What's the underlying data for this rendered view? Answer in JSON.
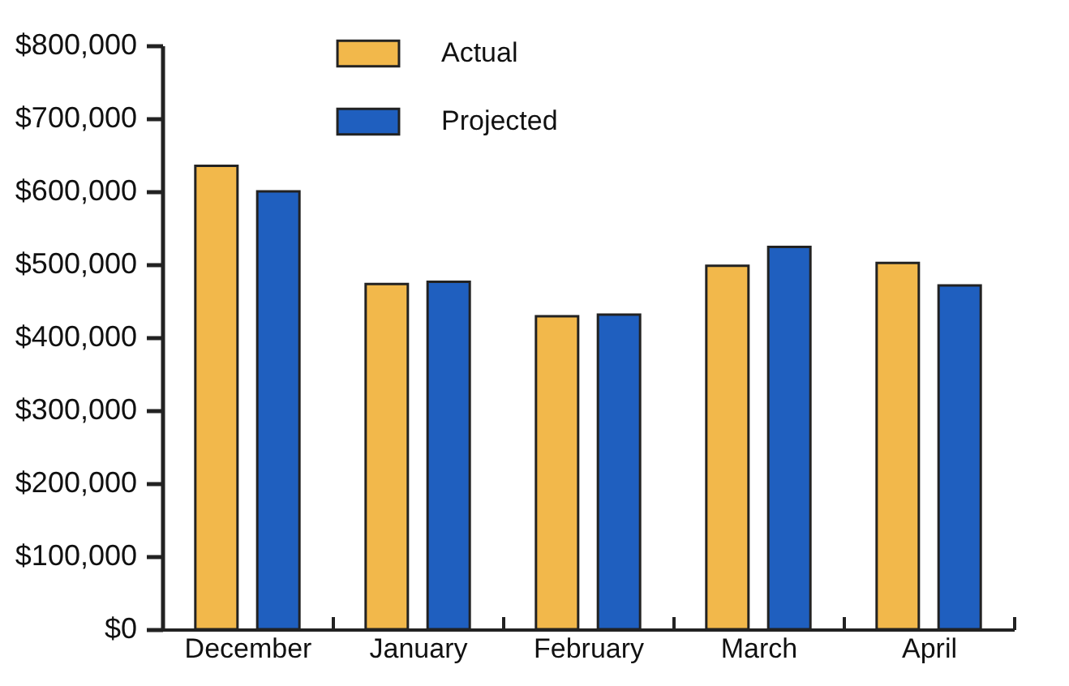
{
  "chart_data": {
    "type": "bar",
    "categories": [
      "December",
      "January",
      "February",
      "March",
      "April"
    ],
    "series": [
      {
        "name": "Actual",
        "color": "#f2b84b",
        "values": [
          635000,
          473000,
          429000,
          498000,
          502000
        ]
      },
      {
        "name": "Projected",
        "color": "#1f5fbf",
        "values": [
          600000,
          476000,
          431000,
          524000,
          471000
        ]
      }
    ],
    "ylim": [
      0,
      800000
    ],
    "yticks": [
      {
        "value": 0,
        "label": "$0"
      },
      {
        "value": 100000,
        "label": "$100,000"
      },
      {
        "value": 200000,
        "label": "$200,000"
      },
      {
        "value": 300000,
        "label": "$300,000"
      },
      {
        "value": 400000,
        "label": "$400,000"
      },
      {
        "value": 500000,
        "label": "$500,000"
      },
      {
        "value": 600000,
        "label": "$600,000"
      },
      {
        "value": 700000,
        "label": "$700,000"
      },
      {
        "value": 800000,
        "label": "$800,000"
      }
    ],
    "grid": false,
    "legend": "top"
  }
}
